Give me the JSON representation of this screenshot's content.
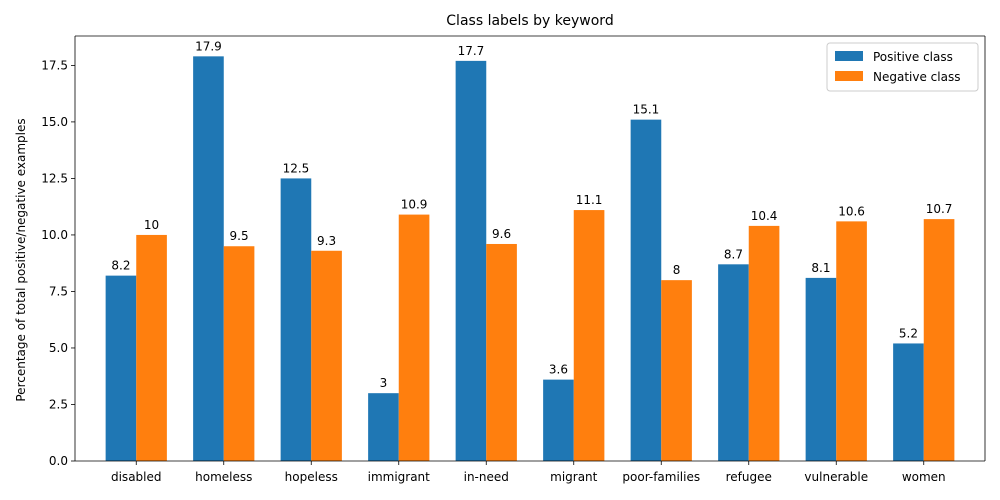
{
  "chart_data": {
    "type": "bar",
    "title": "Class labels by keyword",
    "xlabel": "",
    "ylabel": "Percentage of total positive/negative examples",
    "ylim": [
      0,
      18.8
    ],
    "yticks": [
      0.0,
      2.5,
      5.0,
      7.5,
      10.0,
      12.5,
      15.0,
      17.5
    ],
    "ytick_labels": [
      "0.0",
      "2.5",
      "5.0",
      "7.5",
      "10.0",
      "12.5",
      "15.0",
      "17.5"
    ],
    "categories": [
      "disabled",
      "homeless",
      "hopeless",
      "immigrant",
      "in-need",
      "migrant",
      "poor-families",
      "refugee",
      "vulnerable",
      "women"
    ],
    "series": [
      {
        "name": "Positive class",
        "color": "#1f77b4",
        "values": [
          8.2,
          17.9,
          12.5,
          3,
          17.7,
          3.6,
          15.1,
          8.7,
          8.1,
          5.2
        ],
        "labels": [
          "8.2",
          "17.9",
          "12.5",
          "3",
          "17.7",
          "3.6",
          "15.1",
          "8.7",
          "8.1",
          "5.2"
        ]
      },
      {
        "name": "Negative class",
        "color": "#ff7f0e",
        "values": [
          10,
          9.5,
          9.3,
          10.9,
          9.6,
          11.1,
          8,
          10.4,
          10.6,
          10.7
        ],
        "labels": [
          "10",
          "9.5",
          "9.3",
          "10.9",
          "9.6",
          "11.1",
          "8",
          "10.4",
          "10.6",
          "10.7"
        ]
      }
    ],
    "legend": "top-right",
    "grid": false
  }
}
